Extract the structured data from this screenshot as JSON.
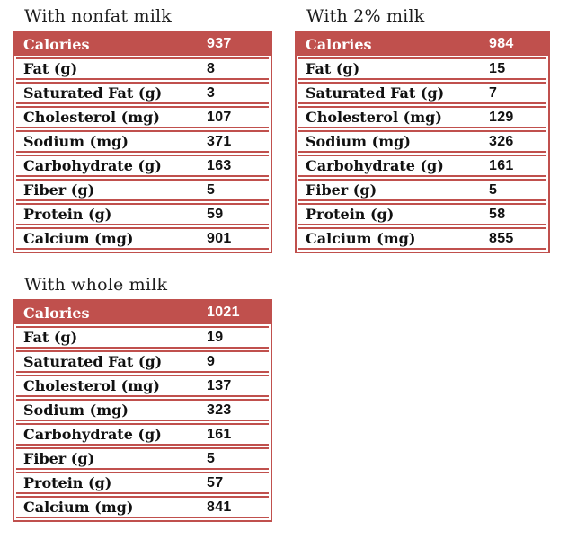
{
  "accent_color": "#C0504D",
  "row_labels": [
    "Calories",
    "Fat (g)",
    "Saturated Fat (g)",
    "Cholesterol (mg)",
    "Sodium (mg)",
    "Carbohydrate (g)",
    "Fiber (g)",
    "Protein (g)",
    "Calcium (mg)"
  ],
  "tables": [
    {
      "title": "With nonfat milk",
      "values": [
        937,
        8,
        3,
        107,
        371,
        163,
        5,
        59,
        901
      ]
    },
    {
      "title": "With 2% milk",
      "values": [
        984,
        15,
        7,
        129,
        326,
        161,
        5,
        58,
        855
      ]
    },
    {
      "title": "With whole milk",
      "values": [
        1021,
        19,
        9,
        137,
        323,
        161,
        5,
        57,
        841
      ]
    }
  ],
  "chart_data": {
    "type": "table",
    "categories": [
      "Calories",
      "Fat (g)",
      "Saturated Fat (g)",
      "Cholesterol (mg)",
      "Sodium (mg)",
      "Carbohydrate (g)",
      "Fiber (g)",
      "Protein (g)",
      "Calcium (mg)"
    ],
    "series": [
      {
        "name": "With nonfat milk",
        "values": [
          937,
          8,
          3,
          107,
          371,
          163,
          5,
          59,
          901
        ]
      },
      {
        "name": "With 2% milk",
        "values": [
          984,
          15,
          7,
          129,
          326,
          161,
          5,
          58,
          855
        ]
      },
      {
        "name": "With whole milk",
        "values": [
          1021,
          19,
          9,
          137,
          323,
          161,
          5,
          57,
          841
        ]
      }
    ]
  }
}
